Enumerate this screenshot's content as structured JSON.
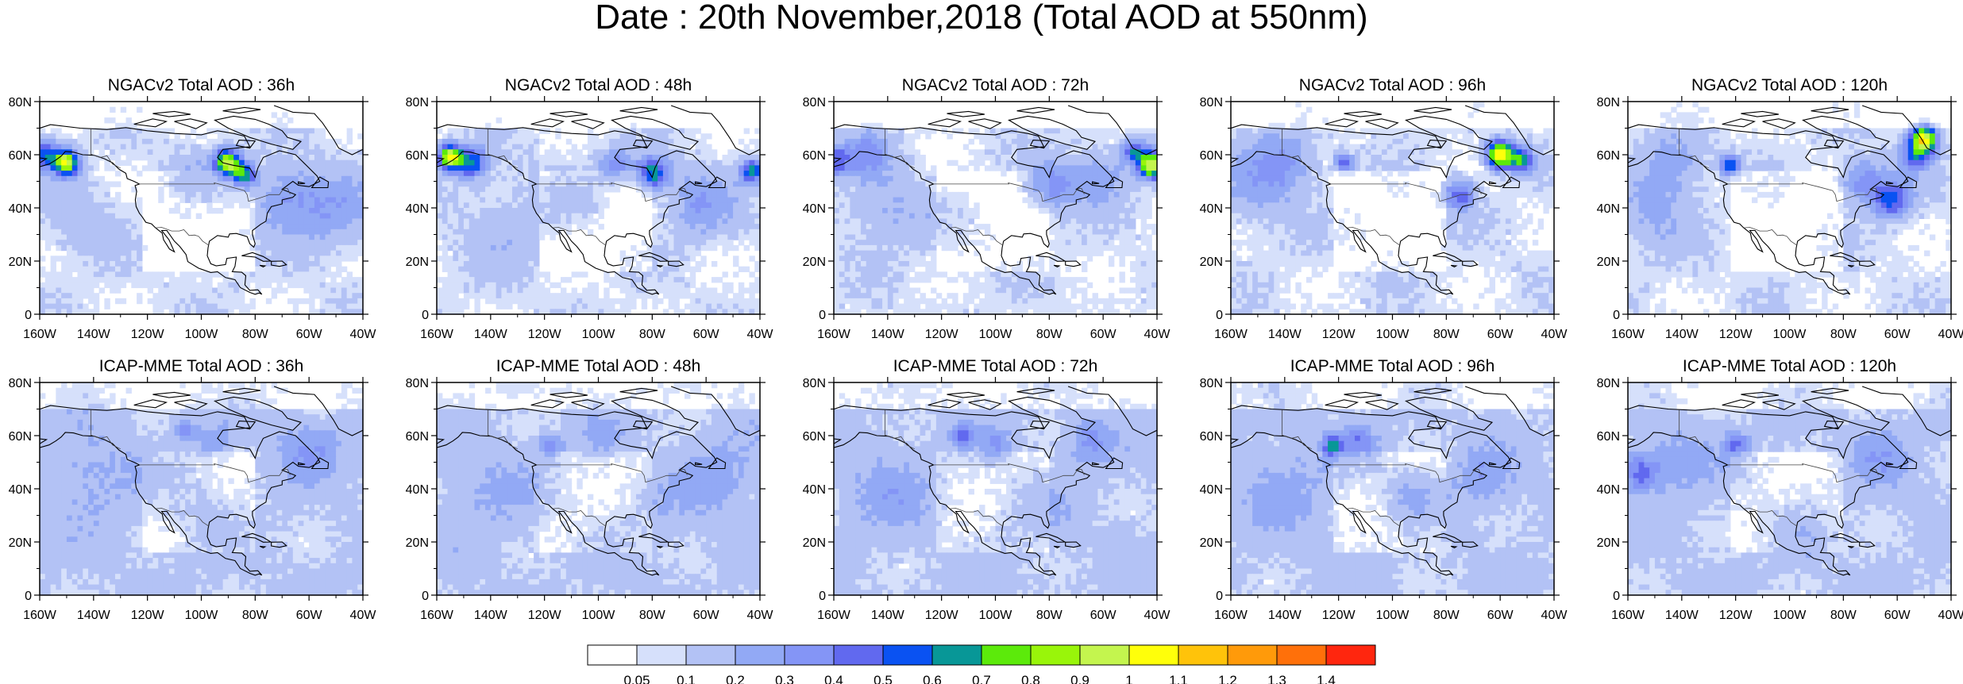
{
  "title": "Date : 20th November,2018 (Total AOD at 550nm)",
  "panels": [
    {
      "title": "NGACv2 Total AOD : 36h",
      "model": "NGACv2",
      "lead": "36h"
    },
    {
      "title": "NGACv2 Total AOD : 48h",
      "model": "NGACv2",
      "lead": "48h"
    },
    {
      "title": "NGACv2 Total AOD : 72h",
      "model": "NGACv2",
      "lead": "72h"
    },
    {
      "title": "NGACv2 Total AOD : 96h",
      "model": "NGACv2",
      "lead": "96h"
    },
    {
      "title": "NGACv2 Total AOD : 120h",
      "model": "NGACv2",
      "lead": "120h"
    },
    {
      "title": "ICAP-MME Total AOD : 36h",
      "model": "ICAP-MME",
      "lead": "36h"
    },
    {
      "title": "ICAP-MME Total AOD : 48h",
      "model": "ICAP-MME",
      "lead": "48h"
    },
    {
      "title": "ICAP-MME Total AOD : 72h",
      "model": "ICAP-MME",
      "lead": "72h"
    },
    {
      "title": "ICAP-MME Total AOD : 96h",
      "model": "ICAP-MME",
      "lead": "96h"
    },
    {
      "title": "ICAP-MME Total AOD : 120h",
      "model": "ICAP-MME",
      "lead": "120h"
    }
  ],
  "map": {
    "lon_range": [
      -160,
      -40
    ],
    "lat_range": [
      0,
      80
    ],
    "lon_ticks": [
      -160,
      -140,
      -120,
      -100,
      -80,
      -60,
      -40
    ],
    "lon_tick_labels": [
      "160W",
      "140W",
      "120W",
      "100W",
      "80W",
      "60W",
      "40W"
    ],
    "lat_ticks": [
      0,
      20,
      40,
      60,
      80
    ],
    "lat_tick_labels": [
      "0",
      "20N",
      "40N",
      "60N",
      "80N"
    ]
  },
  "colorbar": {
    "colors": [
      "#ffffff",
      "#d6e0fb",
      "#b3c2f5",
      "#92a9f5",
      "#8495f6",
      "#6169ef",
      "#0a52f2",
      "#089797",
      "#5cea0b",
      "#99f50a",
      "#c4f54e",
      "#ffff0a",
      "#ffc30a",
      "#ff9a0a",
      "#ff700a",
      "#ff260e"
    ],
    "labels": [
      "0.05",
      "0.1",
      "0.2",
      "0.3",
      "0.4",
      "0.5",
      "0.6",
      "0.7",
      "0.8",
      "0.9",
      "1",
      "1.1",
      "1.2",
      "1.3",
      "1.4"
    ]
  }
}
